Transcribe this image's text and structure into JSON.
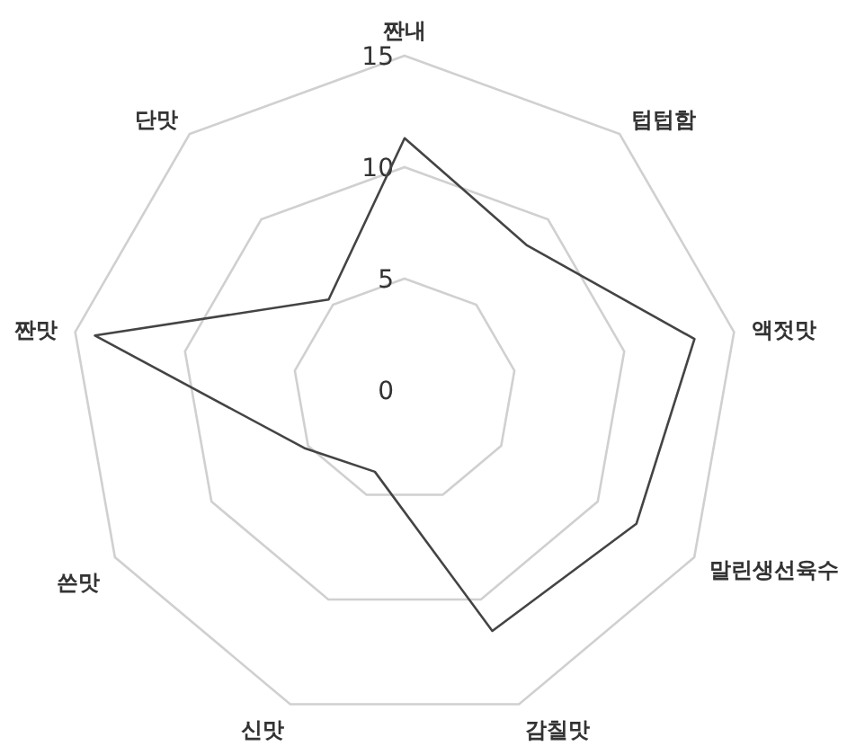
{
  "chart_data": {
    "type": "radar",
    "categories": [
      "짠내",
      "텁텁함",
      "액젓맛",
      "말린생선육수",
      "감칠맛",
      "신맛",
      "쓴맛",
      "짠맛",
      "단맛"
    ],
    "series": [
      {
        "color": "#444444",
        "values": [
          11.3,
          8.5,
          13.2,
          12,
          11.5,
          3.9,
          5.2,
          14.1,
          5.3
        ]
      }
    ],
    "ylim": [
      0,
      15
    ],
    "yticks": [
      0,
      5,
      10,
      15
    ],
    "grid": true,
    "marker": "none",
    "line_style": "solid"
  }
}
